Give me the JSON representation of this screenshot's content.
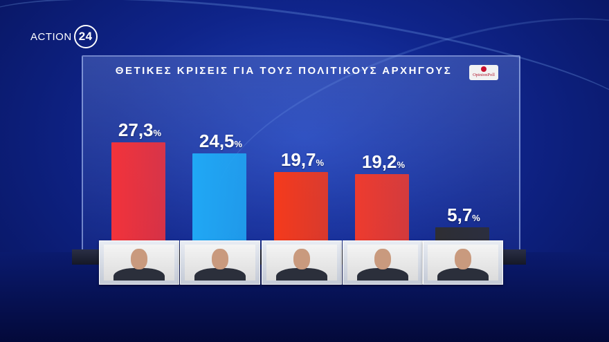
{
  "brand": {
    "name": "ACTION",
    "number": "24"
  },
  "source": {
    "name": "OpinionPoll"
  },
  "chart_data": {
    "type": "bar",
    "title": "ΘΕΤΙΚΕΣ ΚΡΙΣΕΙΣ ΓΙΑ ΤΟΥΣ ΠΟΛΙΤΙΚΟΥΣ ΑΡΧΗΓΟΥΣ",
    "unit": "%",
    "values": [
      27.3,
      24.5,
      19.7,
      19.2,
      5.7
    ],
    "labels": [
      "27,3",
      "24,5",
      "19,7",
      "19,2",
      "5,7"
    ],
    "colors": [
      "#f2333b",
      "#20a8f5",
      "#f53a1c",
      "#ee3b2e",
      "#2e2e33"
    ],
    "ylim": [
      0,
      30
    ],
    "grid": false,
    "legend": "none"
  }
}
